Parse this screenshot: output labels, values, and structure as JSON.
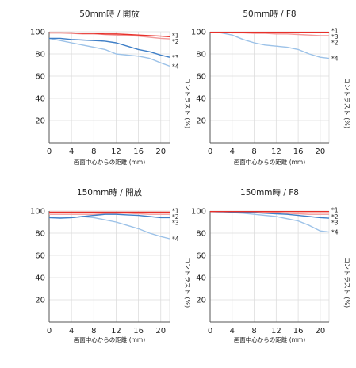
{
  "x_axis_label": "画面中心からの距離 (mm)",
  "y_axis_label": "コントラスト (%)",
  "series_colors": {
    "*1": "#e8302a",
    "*2": "#f29c9c",
    "*3": "#3f7fc7",
    "*4": "#9cc2e8"
  },
  "chart_data": [
    {
      "type": "line",
      "title": "50mm時 / 開放",
      "xlabel": "画面中心からの距離 (mm)",
      "ylabel": "コントラスト (%)",
      "xlim": [
        0,
        21.6
      ],
      "ylim": [
        0,
        100
      ],
      "xticks": [
        0,
        4,
        8,
        12,
        16,
        20
      ],
      "yticks": [
        20,
        40,
        60,
        80,
        100
      ],
      "grid": true,
      "series": [
        {
          "name": "*1",
          "x": [
            0,
            2,
            4,
            6,
            8,
            10,
            12,
            14,
            16,
            18,
            20,
            21.6
          ],
          "values": [
            99,
            99,
            99,
            98.5,
            98.5,
            98,
            98,
            97.5,
            97,
            96.5,
            96,
            95.5
          ]
        },
        {
          "name": "*2",
          "x": [
            0,
            2,
            4,
            6,
            8,
            10,
            12,
            14,
            16,
            18,
            20,
            21.6
          ],
          "values": [
            99,
            99,
            98.5,
            98,
            98,
            97.5,
            97,
            96.5,
            96,
            95,
            94,
            93.5
          ]
        },
        {
          "name": "*3",
          "x": [
            0,
            2,
            4,
            6,
            8,
            10,
            12,
            14,
            16,
            18,
            20,
            21.6
          ],
          "values": [
            94,
            94,
            93,
            92.5,
            92,
            91.5,
            90,
            87,
            84,
            82,
            79,
            77
          ]
        },
        {
          "name": "*4",
          "x": [
            0,
            2,
            4,
            6,
            8,
            10,
            12,
            14,
            16,
            18,
            20,
            21.6
          ],
          "values": [
            94,
            92,
            90,
            88,
            86,
            84,
            80,
            79,
            78,
            76,
            72,
            69
          ]
        }
      ]
    },
    {
      "type": "line",
      "title": "50mm時 / F8",
      "xlabel": "画面中心からの距離 (mm)",
      "ylabel": "コントラスト (%)",
      "xlim": [
        0,
        21.6
      ],
      "ylim": [
        0,
        100
      ],
      "xticks": [
        0,
        4,
        8,
        12,
        16,
        20
      ],
      "yticks": [
        20,
        40,
        60,
        80,
        100
      ],
      "grid": true,
      "series": [
        {
          "name": "*1",
          "x": [
            0,
            2,
            4,
            6,
            8,
            10,
            12,
            14,
            16,
            18,
            20,
            21.6
          ],
          "values": [
            99.5,
            99.5,
            99.5,
            99.5,
            99.5,
            99.5,
            99.5,
            99.5,
            99.5,
            99.5,
            99.5,
            99.5
          ]
        },
        {
          "name": "*3",
          "x": [
            0,
            2,
            4,
            6,
            8,
            10,
            12,
            14,
            16,
            18,
            20,
            21.6
          ],
          "values": [
            99.5,
            99.5,
            99.5,
            99.5,
            99.5,
            99.5,
            99.5,
            99.5,
            99.5,
            99.5,
            99.5,
            99.5
          ]
        },
        {
          "name": "*2",
          "x": [
            0,
            2,
            4,
            6,
            8,
            10,
            12,
            14,
            16,
            18,
            20,
            21.6
          ],
          "values": [
            99.5,
            99.5,
            99,
            99,
            98.5,
            98.5,
            98,
            98,
            97.5,
            97,
            96.5,
            96.5
          ]
        },
        {
          "name": "*4",
          "x": [
            0,
            2,
            4,
            6,
            8,
            10,
            12,
            14,
            16,
            18,
            20,
            21.6
          ],
          "values": [
            99.5,
            99,
            97,
            93,
            90,
            88,
            87,
            86,
            84,
            80,
            77,
            76
          ]
        }
      ]
    },
    {
      "type": "line",
      "title": "150mm時 / 開放",
      "xlabel": "画面中心からの距離 (mm)",
      "ylabel": "コントラスト (%)",
      "xlim": [
        0,
        21.6
      ],
      "ylim": [
        0,
        100
      ],
      "xticks": [
        0,
        4,
        8,
        12,
        16,
        20
      ],
      "yticks": [
        20,
        40,
        60,
        80,
        100
      ],
      "grid": true,
      "series": [
        {
          "name": "*1",
          "x": [
            0,
            2,
            4,
            6,
            8,
            10,
            12,
            14,
            16,
            18,
            20,
            21.6
          ],
          "values": [
            99,
            99,
            99,
            99,
            99,
            99,
            99,
            99,
            99,
            99,
            99,
            99
          ]
        },
        {
          "name": "*2",
          "x": [
            0,
            2,
            4,
            6,
            8,
            10,
            12,
            14,
            16,
            18,
            20,
            21.6
          ],
          "values": [
            97,
            97,
            97,
            97,
            97,
            97.5,
            98,
            98,
            97.5,
            97,
            97,
            97
          ]
        },
        {
          "name": "*3",
          "x": [
            0,
            2,
            4,
            6,
            8,
            10,
            12,
            14,
            16,
            18,
            20,
            21.6
          ],
          "values": [
            94,
            93.5,
            94,
            95,
            96,
            97,
            97,
            96.5,
            96,
            95,
            94,
            94
          ]
        },
        {
          "name": "*4",
          "x": [
            0,
            2,
            4,
            6,
            8,
            10,
            12,
            14,
            16,
            18,
            20,
            21.6
          ],
          "values": [
            94,
            94,
            94,
            95,
            94,
            92,
            90,
            87,
            84,
            80,
            77,
            75
          ]
        }
      ]
    },
    {
      "type": "line",
      "title": "150mm時 / F8",
      "xlabel": "画面中心からの距離 (mm)",
      "ylabel": "コントラスト (%)",
      "xlim": [
        0,
        21.6
      ],
      "ylim": [
        0,
        100
      ],
      "xticks": [
        0,
        4,
        8,
        12,
        16,
        20
      ],
      "yticks": [
        20,
        40,
        60,
        80,
        100
      ],
      "grid": true,
      "series": [
        {
          "name": "*1",
          "x": [
            0,
            2,
            4,
            6,
            8,
            10,
            12,
            14,
            16,
            18,
            20,
            21.6
          ],
          "values": [
            99.5,
            99.5,
            99.5,
            99.5,
            99.5,
            99.5,
            99.5,
            99.5,
            99.5,
            99.5,
            99.5,
            99.5
          ]
        },
        {
          "name": "*2",
          "x": [
            0,
            2,
            4,
            6,
            8,
            10,
            12,
            14,
            16,
            18,
            20,
            21.6
          ],
          "values": [
            99.5,
            99.5,
            99,
            99,
            99,
            98.5,
            98.5,
            98,
            97.5,
            97,
            97,
            97
          ]
        },
        {
          "name": "*3",
          "x": [
            0,
            2,
            4,
            6,
            8,
            10,
            12,
            14,
            16,
            18,
            20,
            21.6
          ],
          "values": [
            99.5,
            99.5,
            99,
            99,
            98.5,
            98,
            97.5,
            97,
            96,
            95,
            94,
            93.5
          ]
        },
        {
          "name": "*4",
          "x": [
            0,
            2,
            4,
            6,
            8,
            10,
            12,
            14,
            16,
            18,
            20,
            21.6
          ],
          "values": [
            99.5,
            99,
            98.5,
            98,
            97,
            96,
            95,
            93,
            91,
            87,
            82,
            81
          ]
        }
      ]
    }
  ]
}
